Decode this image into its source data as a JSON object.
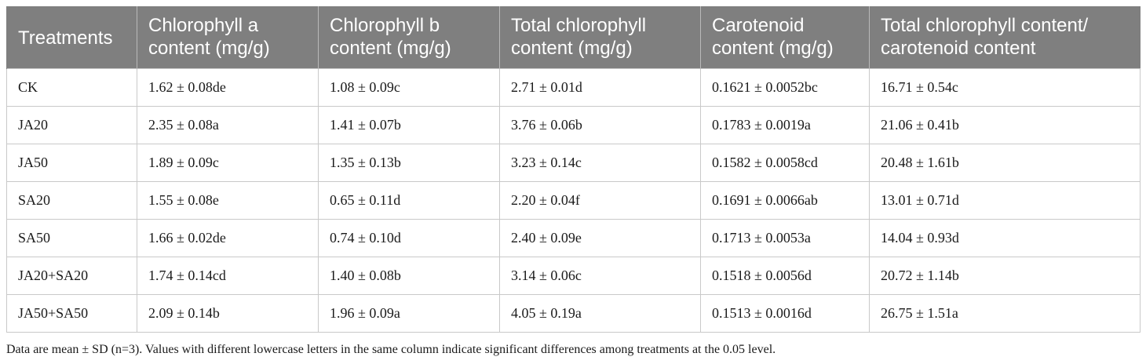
{
  "table": {
    "headers": [
      "Treatments",
      "Chlorophyll a content (mg/g)",
      "Chlorophyll b content (mg/g)",
      "Total chlorophyll content (mg/g)",
      "Carotenoid content (mg/g)",
      "Total chlorophyll content/ carotenoid content"
    ],
    "rows": [
      [
        "CK",
        "1.62 ± 0.08de",
        "1.08 ± 0.09c",
        "2.71 ± 0.01d",
        "0.1621 ± 0.0052bc",
        "16.71 ± 0.54c"
      ],
      [
        "JA20",
        "2.35 ± 0.08a",
        "1.41 ± 0.07b",
        "3.76 ± 0.06b",
        "0.1783 ± 0.0019a",
        "21.06 ± 0.41b"
      ],
      [
        "JA50",
        "1.89 ± 0.09c",
        "1.35 ± 0.13b",
        "3.23 ± 0.14c",
        "0.1582 ± 0.0058cd",
        "20.48 ± 1.61b"
      ],
      [
        "SA20",
        "1.55 ± 0.08e",
        "0.65 ± 0.11d",
        "2.20 ± 0.04f",
        "0.1691 ± 0.0066ab",
        "13.01 ± 0.71d"
      ],
      [
        "SA50",
        "1.66 ± 0.02de",
        "0.74 ± 0.10d",
        "2.40 ± 0.09e",
        "0.1713 ± 0.0053a",
        "14.04 ± 0.93d"
      ],
      [
        "JA20+SA20",
        "1.74 ± 0.14cd",
        "1.40 ± 0.08b",
        "3.14 ± 0.06c",
        "0.1518 ± 0.0056d",
        "20.72 ± 1.14b"
      ],
      [
        "JA50+SA50",
        "2.09 ± 0.14b",
        "1.96 ± 0.09a",
        "4.05 ± 0.19a",
        "0.1513 ± 0.0016d",
        "26.75 ± 1.51a"
      ]
    ]
  },
  "footnote": "Data are mean ± SD (n=3). Values with different lowercase letters in the same column indicate significant differences among treatments at the 0.05 level.",
  "colors": {
    "header_bg": "#7f7f7f",
    "header_text": "#ffffff",
    "grid": "#c9c9c9"
  }
}
